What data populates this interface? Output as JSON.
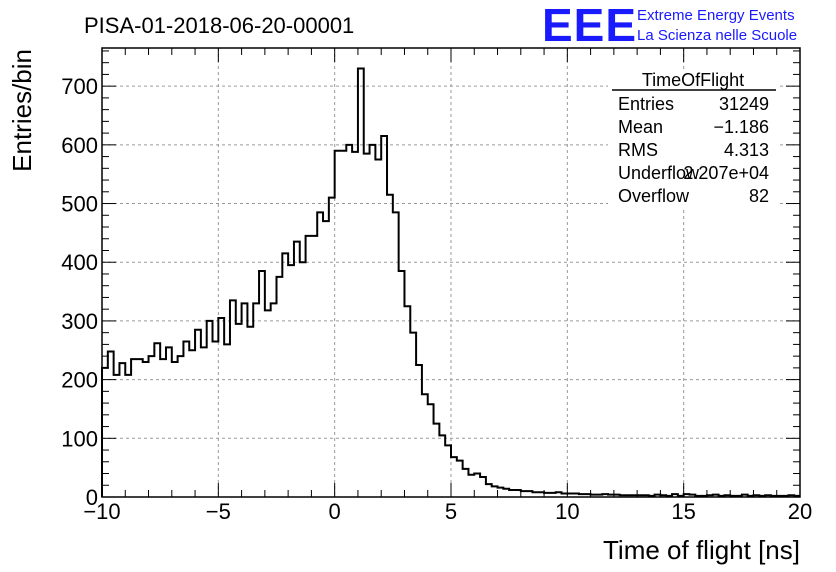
{
  "page_title": "PISA-01-2018-06-20-00001",
  "logo": {
    "mark": "EEE",
    "line1": "Extreme Energy Events",
    "line2": "La Scienza nelle Scuole",
    "color": "#1a1aff"
  },
  "stats_box": {
    "title": "TimeOfFlight",
    "rows": [
      {
        "label": "Entries",
        "value": "31249"
      },
      {
        "label": "Mean",
        "value": "−1.186"
      },
      {
        "label": "RMS",
        "value": "4.313"
      },
      {
        "label": "Underflow",
        "value": "2.207e+04"
      },
      {
        "label": "Overflow",
        "value": "82"
      }
    ]
  },
  "chart_data": {
    "type": "bar",
    "histogram": true,
    "title": "PISA-01-2018-06-20-00001",
    "xlabel": "Time of flight [ns]",
    "ylabel": "Entries/bin",
    "xlim": [
      -10,
      20
    ],
    "ylim": [
      0,
      765
    ],
    "xticks": [
      -10,
      -5,
      0,
      5,
      10,
      15,
      20
    ],
    "xtick_labels": [
      "−10",
      "−5",
      "0",
      "5",
      "10",
      "15",
      "20"
    ],
    "yticks": [
      0,
      100,
      200,
      300,
      400,
      500,
      600,
      700
    ],
    "grid": true,
    "bin_width": 0.25,
    "bin_start": -10,
    "line_color": "#000000",
    "values": [
      220,
      248,
      208,
      228,
      208,
      235,
      235,
      230,
      240,
      262,
      235,
      255,
      230,
      240,
      265,
      250,
      285,
      255,
      300,
      265,
      305,
      260,
      335,
      295,
      330,
      290,
      330,
      385,
      318,
      330,
      375,
      415,
      395,
      435,
      400,
      445,
      445,
      485,
      470,
      510,
      590,
      590,
      600,
      588,
      730,
      585,
      600,
      575,
      615,
      515,
      485,
      385,
      325,
      280,
      225,
      175,
      158,
      125,
      105,
      88,
      68,
      62,
      48,
      38,
      40,
      34,
      22,
      18,
      16,
      14,
      12,
      12,
      10,
      10,
      8,
      8,
      7,
      7,
      8,
      6,
      6,
      6,
      5,
      5,
      4,
      4,
      5,
      4,
      4,
      3,
      3,
      3,
      3,
      3,
      2,
      4,
      3,
      2,
      5,
      2,
      5,
      4,
      2,
      2,
      3,
      4,
      2,
      3,
      2,
      2,
      4,
      2,
      3,
      2,
      3,
      2,
      2,
      2,
      3,
      2
    ]
  }
}
